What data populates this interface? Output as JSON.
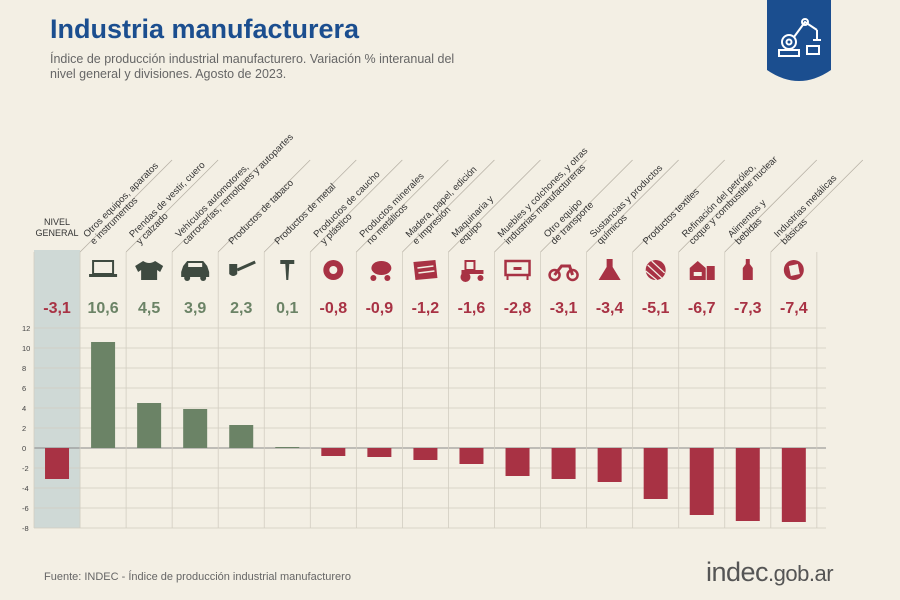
{
  "header": {
    "title": "Industria manufacturera",
    "subtitle": "Índice de producción industrial manufacturero. Variación % interanual del nivel general y divisiones. Agosto de 2023."
  },
  "chart_data": {
    "type": "bar",
    "title": "Industria manufacturera",
    "ylim": [
      -8,
      12
    ],
    "yticks": [
      -8,
      -6,
      -4,
      -2,
      0,
      2,
      4,
      6,
      8,
      10,
      12
    ],
    "grid": true,
    "categories": [
      {
        "lines": [
          "NIVEL",
          "GENERAL"
        ],
        "icon": "gear-icon"
      },
      {
        "lines": [
          "Otros equipos, aparatos",
          "e instrumentos"
        ],
        "icon": "laptop-icon"
      },
      {
        "lines": [
          "Prendas de vestir, cuero",
          "y calzado"
        ],
        "icon": "shirt-icon"
      },
      {
        "lines": [
          "Vehículos automotores,",
          "carrocerías, remolques y autopartes"
        ],
        "icon": "car-icon"
      },
      {
        "lines": [
          "Productos de tabaco"
        ],
        "icon": "pipe-icon"
      },
      {
        "lines": [
          "Productos de metal"
        ],
        "icon": "nail-icon"
      },
      {
        "lines": [
          "Productos de caucho",
          "y plástico"
        ],
        "icon": "tire-icon"
      },
      {
        "lines": [
          "Productos minerales",
          "no metálicos"
        ],
        "icon": "cement-mixer-icon"
      },
      {
        "lines": [
          "Madera, papel, edición",
          "e impresión"
        ],
        "icon": "paper-icon"
      },
      {
        "lines": [
          "Maquinaria y",
          "equipo"
        ],
        "icon": "tractor-icon"
      },
      {
        "lines": [
          "Muebles y colchones, y otras",
          "industrias manufactureras"
        ],
        "icon": "furniture-icon"
      },
      {
        "lines": [
          "Otro equipo",
          "de transporte"
        ],
        "icon": "motorcycle-icon"
      },
      {
        "lines": [
          "Sustancias y productos",
          "químicos"
        ],
        "icon": "flask-icon"
      },
      {
        "lines": [
          "Productos textiles"
        ],
        "icon": "yarn-icon"
      },
      {
        "lines": [
          "Refinación del petróleo,",
          "coque y combustible nuclear"
        ],
        "icon": "refinery-icon"
      },
      {
        "lines": [
          "Alimentos y",
          "bebidas"
        ],
        "icon": "bottle-icon"
      },
      {
        "lines": [
          "Industrias metálicas",
          "básicas"
        ],
        "icon": "metal-icon"
      }
    ],
    "values": [
      -3.1,
      10.6,
      4.5,
      3.9,
      2.3,
      0.1,
      -0.8,
      -0.9,
      -1.2,
      -1.6,
      -2.8,
      -3.1,
      -3.4,
      -5.1,
      -6.7,
      -7.3,
      -7.4
    ],
    "value_labels": [
      "-3,1",
      "10,6",
      "4,5",
      "3,9",
      "2,3",
      "0,1",
      "-0,8",
      "-0,9",
      "-1,2",
      "-1,6",
      "-2,8",
      "-3,1",
      "-3,4",
      "-5,1",
      "-6,7",
      "-7,3",
      "-7,4"
    ],
    "colors": {
      "positive": "#6b8366",
      "negative": "#a83244",
      "highlight_column": "#cfd9d6",
      "grid": "#d2cdc1",
      "axis": "#888888",
      "tick_text": "#444444"
    }
  },
  "footer": {
    "source": "Fuente: INDEC - Índice de producción industrial manufacturero",
    "logo_main": "indec",
    "logo_domain": ".gob.ar"
  },
  "badge": {
    "icon": "robot-arm-icon",
    "color": "#1b4e8f"
  }
}
